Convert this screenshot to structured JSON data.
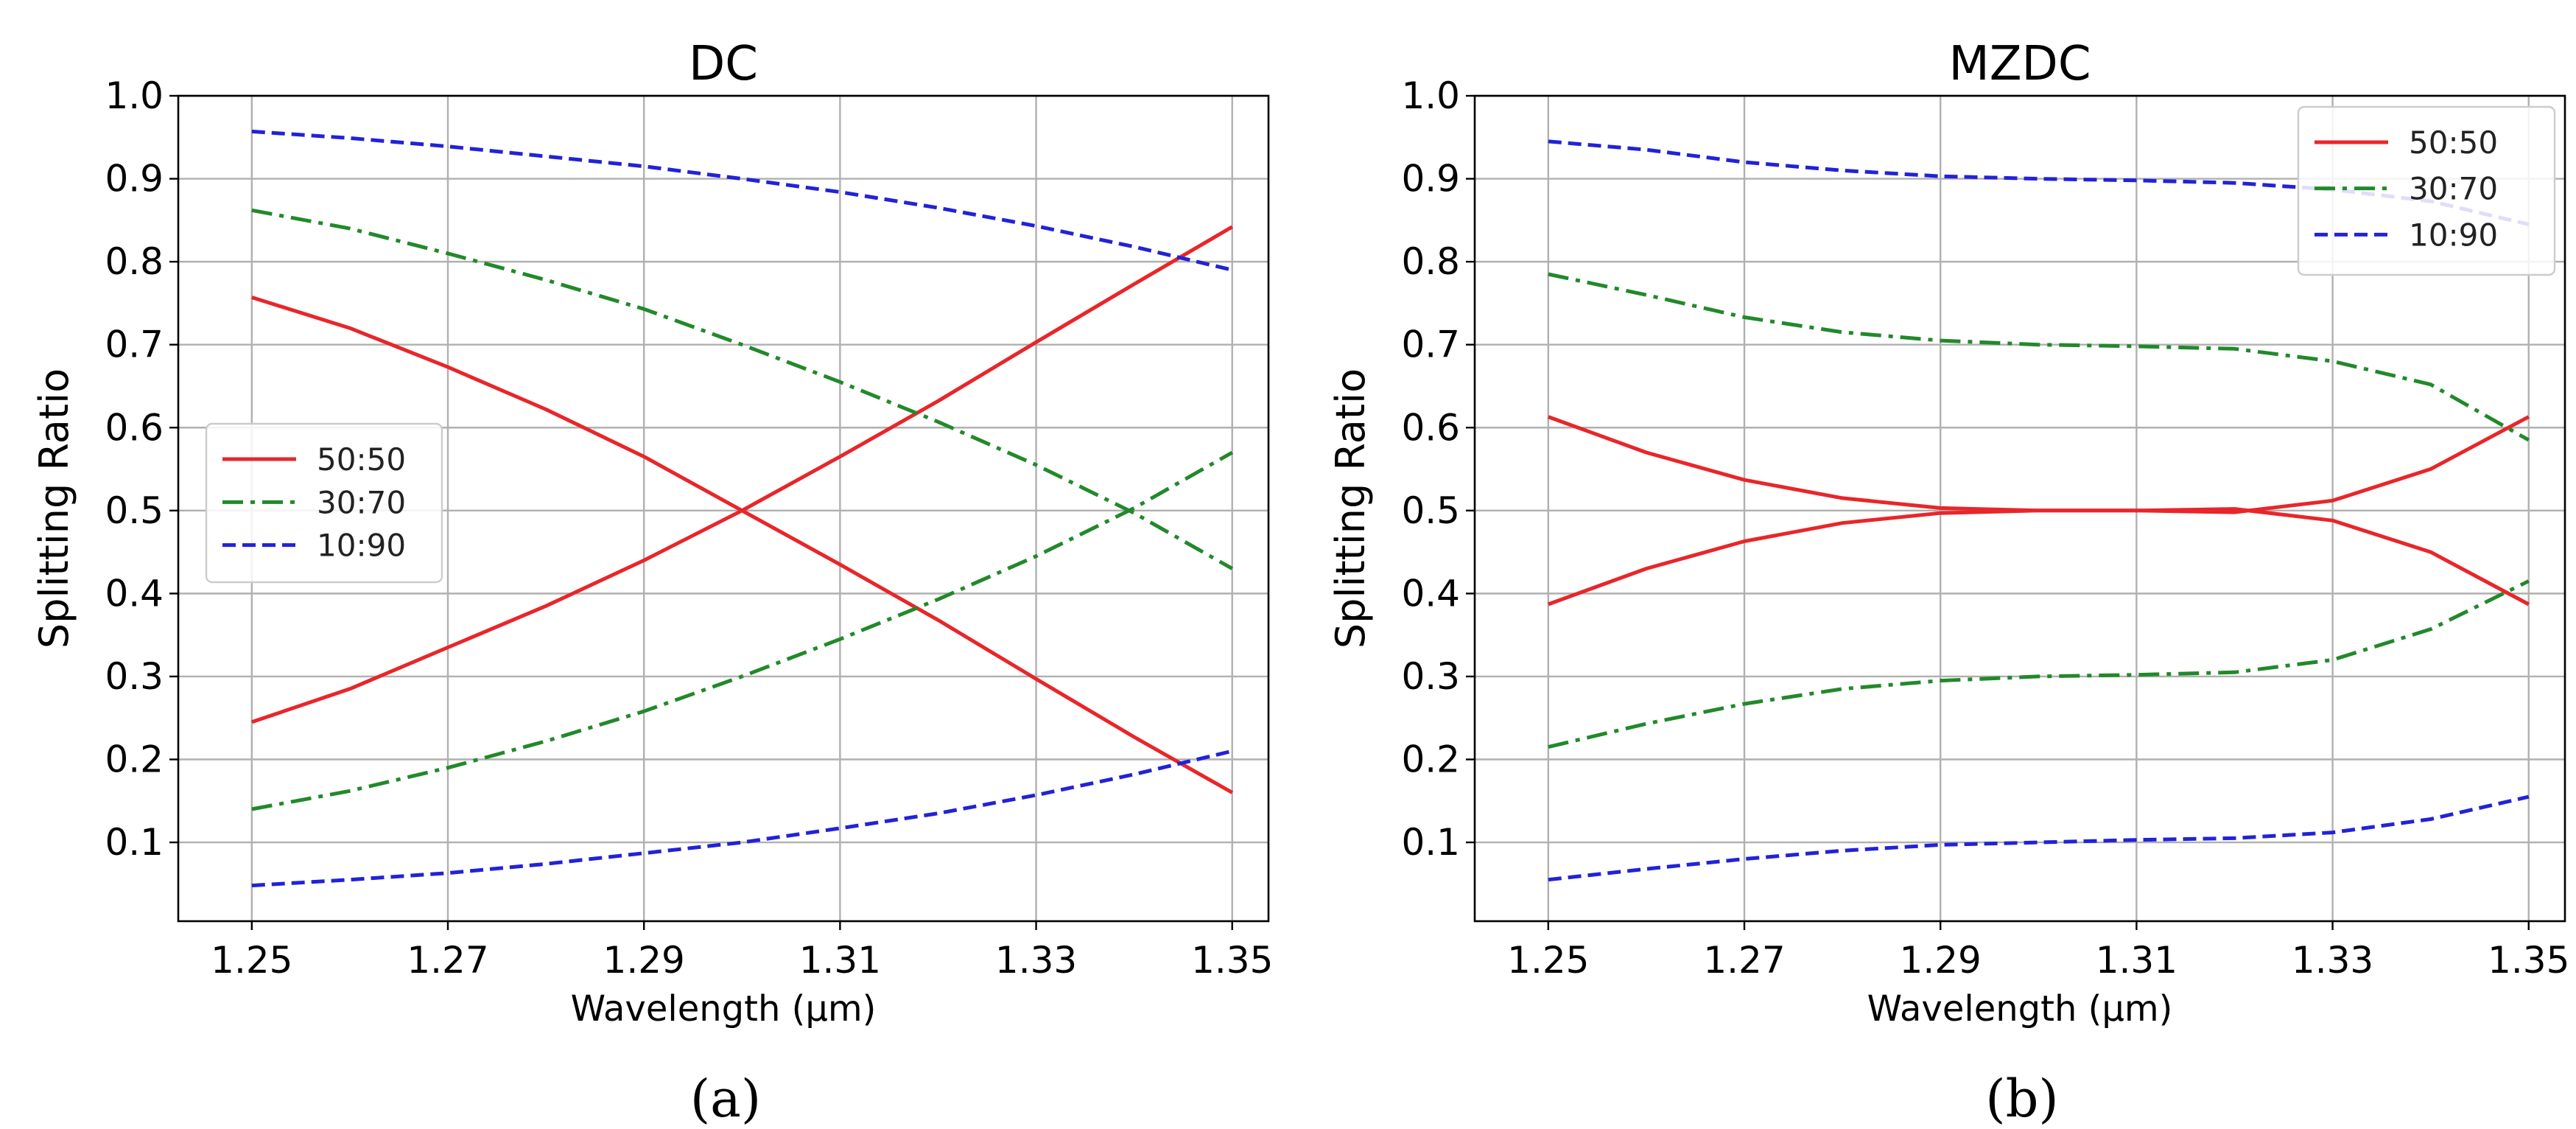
{
  "chart_data": [
    {
      "type": "line",
      "title": "DC",
      "caption": "(a)",
      "xlabel": "Wavelength (µm)",
      "ylabel": "Splitting Ratio",
      "xlim": [
        1.2425,
        1.3537
      ],
      "ylim": [
        0.005,
        1.0
      ],
      "xticks": [
        "1.25",
        "1.27",
        "1.29",
        "1.31",
        "1.33",
        "1.35"
      ],
      "yticks": [
        "0.1",
        "0.2",
        "0.3",
        "0.4",
        "0.5",
        "0.6",
        "0.7",
        "0.8",
        "0.9",
        "1.0"
      ],
      "grid": true,
      "legend_position": "center-left",
      "legend": [
        {
          "label": "50:50",
          "color": "#e8262a",
          "style": "solid"
        },
        {
          "label": "30:70",
          "color": "#22892b",
          "style": "dashdot"
        },
        {
          "label": "10:90",
          "color": "#2222d8",
          "style": "dashed"
        }
      ],
      "x": [
        1.25,
        1.26,
        1.27,
        1.28,
        1.29,
        1.3,
        1.31,
        1.32,
        1.33,
        1.34,
        1.35
      ],
      "series": [
        {
          "name": "50:50",
          "color": "#e8262a",
          "style": "solid",
          "values": [
            0.757,
            0.72,
            0.673,
            0.622,
            0.565,
            0.5,
            0.435,
            0.368,
            0.297,
            0.227,
            0.16
          ]
        },
        {
          "name": "50:50",
          "color": "#e8262a",
          "style": "solid",
          "values": [
            0.245,
            0.285,
            0.335,
            0.385,
            0.44,
            0.5,
            0.565,
            0.632,
            0.703,
            0.773,
            0.842
          ]
        },
        {
          "name": "30:70",
          "color": "#22892b",
          "style": "dashdot",
          "values": [
            0.862,
            0.84,
            0.81,
            0.778,
            0.743,
            0.7,
            0.655,
            0.607,
            0.555,
            0.497,
            0.43
          ]
        },
        {
          "name": "30:70",
          "color": "#22892b",
          "style": "dashdot",
          "values": [
            0.14,
            0.162,
            0.19,
            0.222,
            0.258,
            0.3,
            0.345,
            0.393,
            0.445,
            0.503,
            0.57
          ]
        },
        {
          "name": "10:90",
          "color": "#2222d8",
          "style": "dashed",
          "values": [
            0.957,
            0.949,
            0.939,
            0.927,
            0.915,
            0.9,
            0.884,
            0.865,
            0.843,
            0.818,
            0.79
          ]
        },
        {
          "name": "10:90",
          "color": "#2222d8",
          "style": "dashed",
          "values": [
            0.048,
            0.055,
            0.063,
            0.074,
            0.087,
            0.1,
            0.117,
            0.135,
            0.157,
            0.182,
            0.21
          ]
        }
      ]
    },
    {
      "type": "line",
      "title": "MZDC",
      "caption": "(b)",
      "xlabel": "Wavelength (µm)",
      "ylabel": "Splitting Ratio",
      "xlim": [
        1.2425,
        1.3537
      ],
      "ylim": [
        0.005,
        1.0
      ],
      "xticks": [
        "1.25",
        "1.27",
        "1.29",
        "1.31",
        "1.33",
        "1.35"
      ],
      "yticks": [
        "0.1",
        "0.2",
        "0.3",
        "0.4",
        "0.5",
        "0.6",
        "0.7",
        "0.8",
        "0.9",
        "1.0"
      ],
      "grid": true,
      "legend_position": "top-right",
      "legend": [
        {
          "label": "50:50",
          "color": "#e8262a",
          "style": "solid"
        },
        {
          "label": "30:70",
          "color": "#22892b",
          "style": "dashdot"
        },
        {
          "label": "10:90",
          "color": "#2222d8",
          "style": "dashed"
        }
      ],
      "x": [
        1.25,
        1.26,
        1.27,
        1.28,
        1.29,
        1.3,
        1.31,
        1.32,
        1.33,
        1.34,
        1.35
      ],
      "series": [
        {
          "name": "50:50",
          "color": "#e8262a",
          "style": "solid",
          "values": [
            0.613,
            0.57,
            0.537,
            0.515,
            0.503,
            0.5,
            0.5,
            0.502,
            0.488,
            0.45,
            0.387
          ]
        },
        {
          "name": "50:50",
          "color": "#e8262a",
          "style": "solid",
          "values": [
            0.387,
            0.43,
            0.463,
            0.485,
            0.497,
            0.5,
            0.5,
            0.498,
            0.512,
            0.55,
            0.613
          ]
        },
        {
          "name": "30:70",
          "color": "#22892b",
          "style": "dashdot",
          "values": [
            0.785,
            0.76,
            0.733,
            0.715,
            0.705,
            0.7,
            0.698,
            0.695,
            0.68,
            0.652,
            0.585
          ]
        },
        {
          "name": "30:70",
          "color": "#22892b",
          "style": "dashdot",
          "values": [
            0.215,
            0.243,
            0.267,
            0.285,
            0.295,
            0.3,
            0.302,
            0.305,
            0.32,
            0.357,
            0.415
          ]
        },
        {
          "name": "10:90",
          "color": "#2222d8",
          "style": "dashed",
          "values": [
            0.945,
            0.935,
            0.92,
            0.91,
            0.903,
            0.9,
            0.898,
            0.895,
            0.887,
            0.873,
            0.845
          ]
        },
        {
          "name": "10:90",
          "color": "#2222d8",
          "style": "dashed",
          "values": [
            0.055,
            0.068,
            0.08,
            0.09,
            0.097,
            0.1,
            0.103,
            0.105,
            0.112,
            0.128,
            0.155
          ]
        }
      ]
    }
  ]
}
